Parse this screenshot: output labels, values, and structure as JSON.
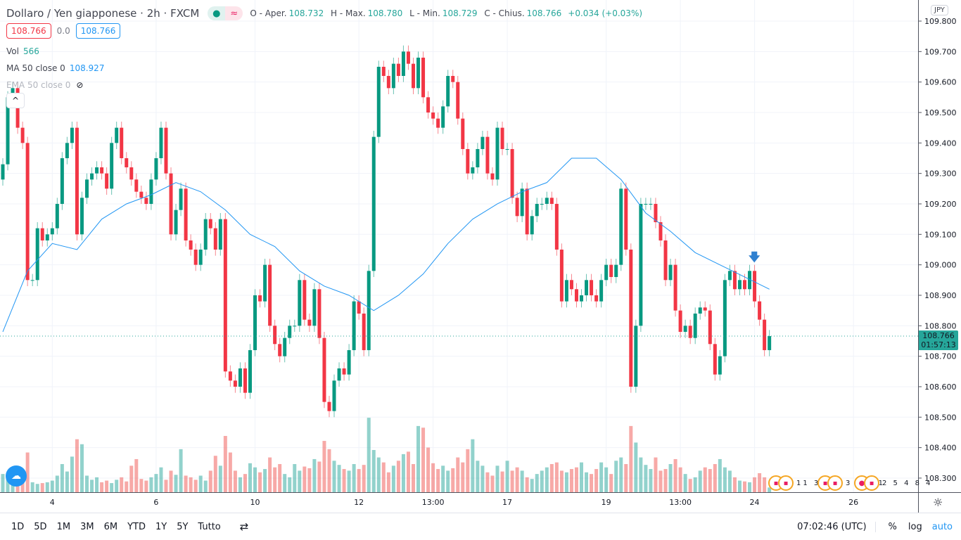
{
  "header": {
    "symbol": "Dollaro / Yen giapponese · 2h · FXCM",
    "status_dot": "●",
    "status_wave": "≈",
    "ohlc": {
      "o_label": "O - Aper.",
      "o": "108.732",
      "h_label": "H - Max.",
      "h": "108.780",
      "l_label": "L - Min.",
      "l": "108.729",
      "c_label": "C - Chius.",
      "c": "108.766",
      "change": "+0.034 (+0.03%)"
    }
  },
  "quote": {
    "sell": "108.766",
    "spread": "0.0",
    "buy": "108.766"
  },
  "indicators": {
    "vol_label": "Vol",
    "vol_value": "566",
    "ma_label": "MA 50 close 0",
    "ma_value": "108.927",
    "ema_label": "EMA 50 close 0"
  },
  "currency": "JPY",
  "last_price": {
    "price": "108.766",
    "countdown": "01:57:13"
  },
  "events": [
    {
      "label": "11 3"
    },
    {
      "label": "3 2 4 1"
    },
    {
      "label": "2 5 4 8 4"
    }
  ],
  "bottombar": {
    "ranges": [
      "1D",
      "5D",
      "1M",
      "3M",
      "6M",
      "YTD",
      "1Y",
      "5Y",
      "Tutto"
    ],
    "time": "07:02:46 (UTC)",
    "percent": "%",
    "log": "log",
    "auto": "auto"
  },
  "colors": {
    "up": "#26a69a",
    "down": "#ef5350",
    "candle_up": "#089981",
    "candle_down": "#f23645",
    "ma": "#2196f3",
    "accent": "#2962ff"
  },
  "chart_data": {
    "type": "candlestick",
    "ylim": [
      108.25,
      109.82
    ],
    "y_ticks": [
      "109.800",
      "109.700",
      "109.600",
      "109.500",
      "109.400",
      "109.300",
      "109.200",
      "109.100",
      "109.000",
      "108.900",
      "108.800",
      "108.700",
      "108.600",
      "108.500",
      "108.400",
      "108.300"
    ],
    "x_ticks": [
      {
        "label": "4",
        "i": 10
      },
      {
        "label": "6",
        "i": 31
      },
      {
        "label": "10",
        "i": 51
      },
      {
        "label": "12",
        "i": 72
      },
      {
        "label": "13:00",
        "i": 87
      },
      {
        "label": "17",
        "i": 102
      },
      {
        "label": "19",
        "i": 122
      },
      {
        "label": "13:00",
        "i": 137
      },
      {
        "label": "24",
        "i": 152
      },
      {
        "label": "26",
        "i": 172
      }
    ],
    "first_open": 109.28,
    "close": [
      109.33,
      109.55,
      109.58,
      109.45,
      109.4,
      108.95,
      108.95,
      109.12,
      109.08,
      109.1,
      109.12,
      109.2,
      109.35,
      109.4,
      109.45,
      109.1,
      109.22,
      109.28,
      109.3,
      109.32,
      109.3,
      109.25,
      109.4,
      109.45,
      109.35,
      109.32,
      109.28,
      109.24,
      109.22,
      109.2,
      109.28,
      109.35,
      109.45,
      109.3,
      109.1,
      109.18,
      109.25,
      109.08,
      109.05,
      109.0,
      109.05,
      109.15,
      109.12,
      109.05,
      109.15,
      108.65,
      108.62,
      108.6,
      108.66,
      108.58,
      108.72,
      108.9,
      108.88,
      109.0,
      108.8,
      108.74,
      108.7,
      108.76,
      108.8,
      108.8,
      108.95,
      108.82,
      108.8,
      108.92,
      108.76,
      108.55,
      108.52,
      108.62,
      108.66,
      108.64,
      108.72,
      108.88,
      108.84,
      108.72,
      108.98,
      109.42,
      109.65,
      109.62,
      109.58,
      109.66,
      109.62,
      109.7,
      109.66,
      109.58,
      109.68,
      109.55,
      109.5,
      109.48,
      109.45,
      109.52,
      109.62,
      109.6,
      109.48,
      109.38,
      109.3,
      109.32,
      109.38,
      109.42,
      109.3,
      109.28,
      109.45,
      109.38,
      109.38,
      109.22,
      109.16,
      109.25,
      109.1,
      109.16,
      109.2,
      109.2,
      109.22,
      109.2,
      109.05,
      108.88,
      108.95,
      108.92,
      108.88,
      108.9,
      108.95,
      108.9,
      108.88,
      108.95,
      109.0,
      108.96,
      109.0,
      109.25,
      109.05,
      108.6,
      108.8,
      109.2,
      109.2,
      109.2,
      109.14,
      109.08,
      108.95,
      109.0,
      108.85,
      108.78,
      108.8,
      108.76,
      108.84,
      108.86,
      108.85,
      108.74,
      108.64,
      108.7,
      108.95,
      108.98,
      108.92,
      108.95,
      108.92,
      108.98,
      108.88,
      108.82,
      108.72,
      108.766
    ],
    "volume": [
      2200,
      1800,
      3000,
      2600,
      1500,
      4800,
      1200,
      1000,
      1100,
      1200,
      1400,
      2000,
      3400,
      2500,
      4300,
      6400,
      5800,
      2000,
      1500,
      1800,
      1200,
      1400,
      1100,
      1500,
      1800,
      1300,
      3200,
      4000,
      1600,
      1400,
      1800,
      2200,
      3000,
      1500,
      2600,
      2100,
      5200,
      2000,
      1800,
      1500,
      2000,
      1400,
      2600,
      4400,
      3200,
      6800,
      4800,
      2600,
      1800,
      2200,
      3500,
      3000,
      2400,
      2800,
      4200,
      3000,
      3400,
      2200,
      1800,
      3400,
      2600,
      3100,
      2900,
      4000,
      3700,
      6200,
      5200,
      3800,
      3300,
      2800,
      2600,
      3400,
      2800,
      3300,
      9000,
      5100,
      4200,
      3600,
      2400,
      3200,
      3800,
      4600,
      4900,
      3400,
      8000,
      7800,
      5400,
      3500,
      2800,
      3200,
      2600,
      2900,
      4200,
      3600,
      5200,
      6400,
      3800,
      3200,
      2400,
      2000,
      3200,
      2500,
      3800,
      2600,
      3000,
      2600,
      1800,
      1600,
      2200,
      2600,
      3000,
      3400,
      3600,
      2600,
      2400,
      2800,
      3000,
      3600,
      2400,
      2200,
      2800,
      3600,
      3000,
      2200,
      3800,
      4200,
      3400,
      8000,
      6000,
      4200,
      3300,
      2800,
      4200,
      2600,
      2800,
      3400,
      4000,
      3000,
      2200,
      1600,
      1800,
      2600,
      3000,
      2800,
      3400,
      4000,
      3000,
      2600,
      1800,
      1400,
      1300,
      1200,
      1800,
      2300,
      1800,
      566
    ],
    "ma50_every5": [
      108.78,
      108.98,
      109.07,
      109.05,
      109.15,
      109.2,
      109.23,
      109.27,
      109.24,
      109.18,
      109.1,
      109.06,
      108.98,
      108.93,
      108.9,
      108.85,
      108.9,
      108.97,
      109.07,
      109.15,
      109.2,
      109.24,
      109.27,
      109.35,
      109.35,
      109.28,
      109.17,
      109.11,
      109.04,
      109.0,
      108.96,
      108.92
    ]
  }
}
